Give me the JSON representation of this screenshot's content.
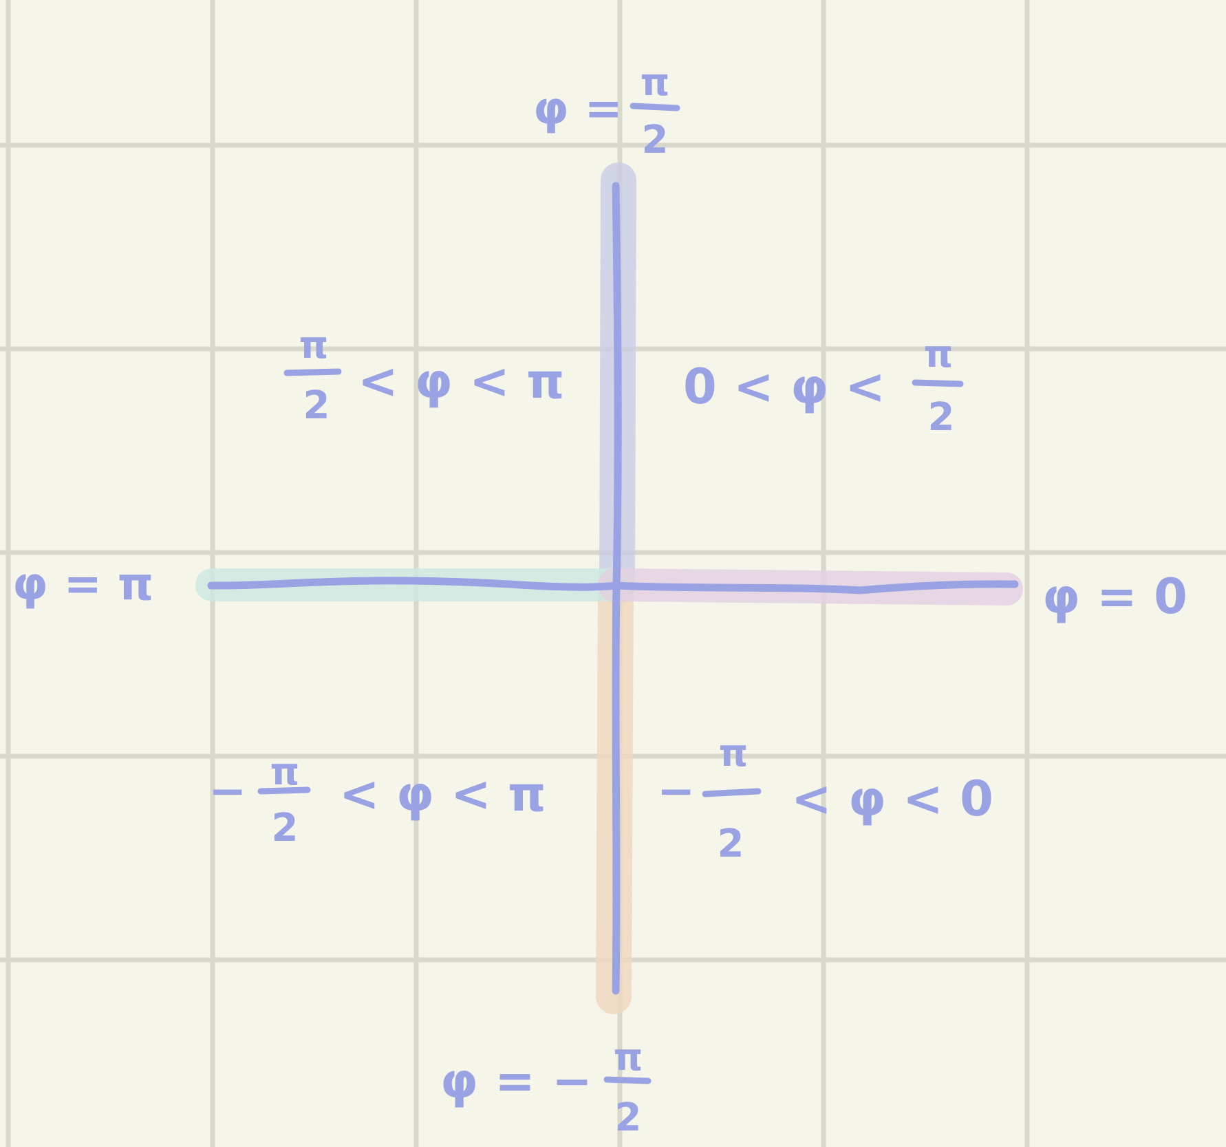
{
  "colors": {
    "background": "#f6f5ea",
    "grid": "#d9d8cc",
    "ink": "#99a2e3",
    "highlight_up": "#c9cde6",
    "highlight_down": "#f0d7bd",
    "highlight_left": "#cce9e2",
    "highlight_right": "#e3d0e2"
  },
  "labels": {
    "phi_pi_half": {
      "lhs": "φ =",
      "num": "π",
      "den": "2"
    },
    "phi_zero": "φ = 0",
    "phi_pi": "φ = π",
    "phi_minus_pi_half": {
      "lhs": "φ = −",
      "num": "π",
      "den": "2"
    }
  },
  "regions": {
    "quadrant_1": {
      "pre": "0 < φ <",
      "num": "π",
      "den": "2"
    },
    "quadrant_2": {
      "num": "π",
      "den": "2",
      "post": "< φ < π"
    },
    "quadrant_3": {
      "pre": "−",
      "num": "π",
      "den": "2",
      "post": "< φ < π"
    },
    "quadrant_4": {
      "pre": "−",
      "num": "π",
      "den": "2",
      "post": "< φ < 0"
    }
  }
}
